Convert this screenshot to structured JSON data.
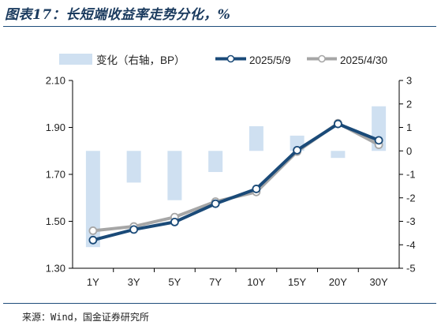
{
  "figure": {
    "title": "图表17：长短端收益率走势分化，%",
    "source": "来源：Wind，国金证券研究所"
  },
  "chart_data": {
    "type": "bar+line",
    "categories": [
      "1Y",
      "3Y",
      "5Y",
      "7Y",
      "10Y",
      "15Y",
      "20Y",
      "30Y"
    ],
    "bars": {
      "name": "变化（右轴，BP）",
      "axis": "right",
      "color": "#cfe0f1",
      "values": [
        -4.1,
        -1.35,
        -2.1,
        -0.9,
        1.05,
        0.65,
        -0.3,
        1.9
      ]
    },
    "series": [
      {
        "name": "2025/5/9",
        "axis": "left",
        "color": "#1a4a78",
        "values": [
          1.42,
          1.465,
          1.497,
          1.575,
          1.638,
          1.803,
          1.915,
          1.845
        ]
      },
      {
        "name": "2025/4/30",
        "axis": "left",
        "color": "#a6a6a6",
        "values": [
          1.46,
          1.478,
          1.518,
          1.584,
          1.625,
          1.797,
          1.918,
          1.826
        ]
      }
    ],
    "y_left": {
      "min": 1.3,
      "max": 2.1,
      "ticks": [
        "1.30",
        "1.50",
        "1.70",
        "1.90",
        "2.10"
      ]
    },
    "y_right": {
      "min": -5,
      "max": 3,
      "ticks": [
        "-5",
        "-4",
        "-3",
        "-2",
        "-1",
        "0",
        "1",
        "2",
        "3"
      ]
    },
    "legend": {
      "position": "top"
    },
    "grid": false
  }
}
